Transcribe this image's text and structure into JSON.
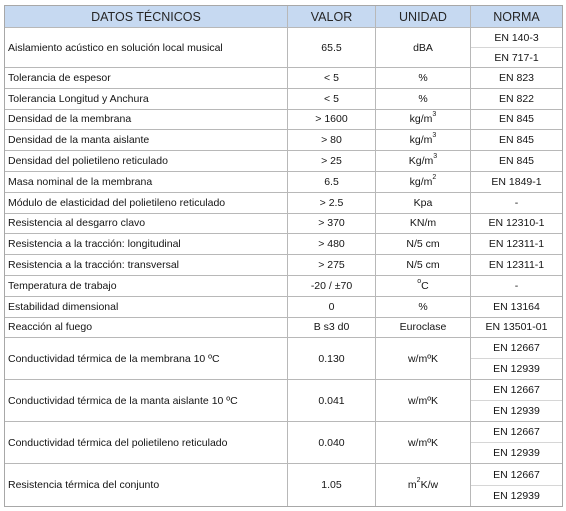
{
  "header": {
    "label": "DATOS TÉCNICOS",
    "value": "VALOR",
    "unit": "UNIDAD",
    "norm": "NORMA"
  },
  "colors": {
    "header_bg": "#c6d9f1",
    "grid": "#b8b8b8"
  },
  "rows": [
    {
      "label": "Aislamiento acústico en solución local musical",
      "value": "65.5",
      "unit": {
        "text": "dBA"
      },
      "norms": [
        "EN 140-3",
        "EN 717-1"
      ]
    },
    {
      "label": "Tolerancia de espesor",
      "value": "< 5",
      "unit": {
        "text": "%"
      },
      "norms": [
        "EN 823"
      ]
    },
    {
      "label": "Tolerancia Longitud y Anchura",
      "value": "< 5",
      "unit": {
        "text": "%"
      },
      "norms": [
        "EN 822"
      ]
    },
    {
      "label": "Densidad de la membrana",
      "value": "> 1600",
      "unit": {
        "text": "kg/m",
        "sup": "3"
      },
      "norms": [
        "EN 845"
      ]
    },
    {
      "label": "Densidad de la manta aislante",
      "value": "> 80",
      "unit": {
        "text": "kg/m",
        "sup": "3"
      },
      "norms": [
        "EN 845"
      ]
    },
    {
      "label": "Densidad del polietileno reticulado",
      "value": "> 25",
      "unit": {
        "text": "Kg/m",
        "sup": "3"
      },
      "norms": [
        "EN 845"
      ]
    },
    {
      "label": "Masa nominal de la membrana",
      "value": "6.5",
      "unit": {
        "text": "kg/m",
        "sup": "2"
      },
      "norms": [
        "EN 1849-1"
      ]
    },
    {
      "label": "Módulo de elasticidad del polietileno reticulado",
      "value": "> 2.5",
      "unit": {
        "text": "Kpa"
      },
      "norms": [
        "-"
      ]
    },
    {
      "label": "Resistencia al desgarro clavo",
      "value": "> 370",
      "unit": {
        "text": "KN/m"
      },
      "norms": [
        "EN 12310-1"
      ]
    },
    {
      "label": "Resistencia a la tracción: longitudinal",
      "value": "> 480",
      "unit": {
        "text": "N/5 cm"
      },
      "norms": [
        "EN 12311-1"
      ]
    },
    {
      "label": "Resistencia a la tracción: transversal",
      "value": "> 275",
      "unit": {
        "text": "N/5 cm"
      },
      "norms": [
        "EN 12311-1"
      ]
    },
    {
      "label": "Temperatura de trabajo",
      "value": "-20 / ±70",
      "unit": {
        "sup": "o",
        "after": "C"
      },
      "norms": [
        "-"
      ]
    },
    {
      "label": "Estabilidad dimensional",
      "value": "0",
      "unit": {
        "text": "%"
      },
      "norms": [
        "EN 13164"
      ]
    },
    {
      "label": "Reacción al fuego",
      "value": "B s3 d0",
      "unit": {
        "text": "Euroclase"
      },
      "norms": [
        "EN 13501-01"
      ]
    },
    {
      "label": "Conductividad térmica de la membrana 10 ºC",
      "value": "0.130",
      "unit": {
        "text": "w/mºK"
      },
      "norms": [
        "EN 12667",
        "EN 12939"
      ]
    },
    {
      "label": "Conductividad térmica de la manta aislante 10 ºC",
      "value": "0.041",
      "unit": {
        "text": "w/mºK"
      },
      "norms": [
        "EN 12667",
        "EN 12939"
      ]
    },
    {
      "label": "Conductividad térmica del polietileno reticulado",
      "value": "0.040",
      "unit": {
        "text": "w/mºK"
      },
      "norms": [
        "EN 12667",
        "EN 12939"
      ]
    },
    {
      "label": "Resistencia térmica del conjunto",
      "value": "1.05",
      "unit": {
        "text": "m",
        "sup": "2",
        "after": "K/w"
      },
      "norms": [
        "EN 12667",
        "EN 12939"
      ]
    }
  ]
}
